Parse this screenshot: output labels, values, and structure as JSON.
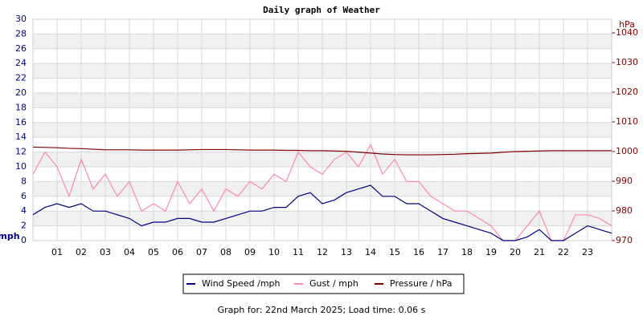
{
  "chart_data": {
    "type": "line",
    "title": "Daily graph of Weather",
    "y_label": "mph",
    "y2_label": "hPa",
    "footer": "Graph for: 22nd March 2025; Load time: 0.06 s",
    "x": [
      0,
      0.5,
      1,
      1.5,
      2,
      2.5,
      3,
      3.5,
      4,
      4.5,
      5,
      5.5,
      6,
      6.5,
      7,
      7.5,
      8,
      8.5,
      9,
      9.5,
      10,
      10.5,
      11,
      11.5,
      12,
      12.5,
      13,
      13.5,
      14,
      14.5,
      15,
      15.5,
      16,
      16.5,
      17,
      17.5,
      18,
      18.5,
      19,
      19.5,
      20,
      20.5,
      21,
      21.5,
      22,
      22.5,
      23,
      23.5,
      24
    ],
    "xlim": [
      0,
      24
    ],
    "xticks": [
      {
        "value": 1,
        "label": "01"
      },
      {
        "value": 2,
        "label": "02"
      },
      {
        "value": 3,
        "label": "03"
      },
      {
        "value": 4,
        "label": "04"
      },
      {
        "value": 5,
        "label": "05"
      },
      {
        "value": 6,
        "label": "06"
      },
      {
        "value": 7,
        "label": "07"
      },
      {
        "value": 8,
        "label": "08"
      },
      {
        "value": 9,
        "label": "09"
      },
      {
        "value": 10,
        "label": "10"
      },
      {
        "value": 11,
        "label": "11"
      },
      {
        "value": 12,
        "label": "12"
      },
      {
        "value": 13,
        "label": "13"
      },
      {
        "value": 14,
        "label": "14"
      },
      {
        "value": 15,
        "label": "15"
      },
      {
        "value": 16,
        "label": "16"
      },
      {
        "value": 17,
        "label": "17"
      },
      {
        "value": 18,
        "label": "18"
      },
      {
        "value": 19,
        "label": "19"
      },
      {
        "value": 20,
        "label": "20"
      },
      {
        "value": 21,
        "label": "21"
      },
      {
        "value": 22,
        "label": "22"
      },
      {
        "value": 23,
        "label": "23"
      }
    ],
    "ylim": [
      0,
      30
    ],
    "yticks": [
      0,
      2,
      4,
      6,
      8,
      10,
      12,
      14,
      16,
      18,
      20,
      22,
      24,
      26,
      28,
      30
    ],
    "y2lim": [
      970,
      1044.6
    ],
    "y2ticks": [
      970,
      980,
      990,
      1000,
      1010,
      1020,
      1030,
      1040
    ],
    "grid": true,
    "series": [
      {
        "name": "Wind Speed /mph",
        "color": "#000080",
        "values": [
          3.5,
          4.5,
          5,
          4.5,
          5,
          4,
          4,
          3.5,
          3,
          2,
          2.5,
          2.5,
          3,
          3,
          2.5,
          2.5,
          3,
          3.5,
          4,
          4,
          4.5,
          4.5,
          6,
          6.5,
          5,
          5.5,
          6.5,
          7,
          7.5,
          6,
          6,
          5,
          5,
          4,
          3,
          2.5,
          2,
          1.5,
          1,
          0,
          0,
          0.5,
          1.5,
          0,
          0,
          1,
          2,
          1.5,
          1
        ]
      },
      {
        "name": "Gust / mph",
        "color": "#ff88aa",
        "values": [
          9,
          12,
          10,
          6,
          11,
          7,
          9,
          6,
          8,
          4,
          5,
          4,
          8,
          5,
          7,
          4,
          7,
          6,
          8,
          7,
          9,
          8,
          12,
          10,
          9,
          11,
          12,
          10,
          13,
          9,
          11,
          8,
          8,
          6,
          5,
          4,
          4,
          3,
          2,
          0,
          0,
          2,
          4,
          0,
          0,
          3.5,
          3.5,
          3,
          2
        ]
      },
      {
        "name": "Pressure / hPa",
        "color": "#800000",
        "axis": "y2",
        "values": [
          1001.5,
          1001.4,
          1001.3,
          1001.1,
          1001.0,
          1000.8,
          1000.6,
          1000.6,
          1000.6,
          1000.5,
          1000.5,
          1000.5,
          1000.5,
          1000.6,
          1000.7,
          1000.7,
          1000.7,
          1000.6,
          1000.5,
          1000.5,
          1000.5,
          1000.4,
          1000.4,
          1000.3,
          1000.3,
          1000.2,
          1000.1,
          999.8,
          999.5,
          999.2,
          999.0,
          998.9,
          998.9,
          998.9,
          999.0,
          999.1,
          999.3,
          999.4,
          999.5,
          999.8,
          1000.0,
          1000.1,
          1000.2,
          1000.3,
          1000.3,
          1000.3,
          1000.3,
          1000.3,
          1000.3
        ]
      }
    ]
  }
}
